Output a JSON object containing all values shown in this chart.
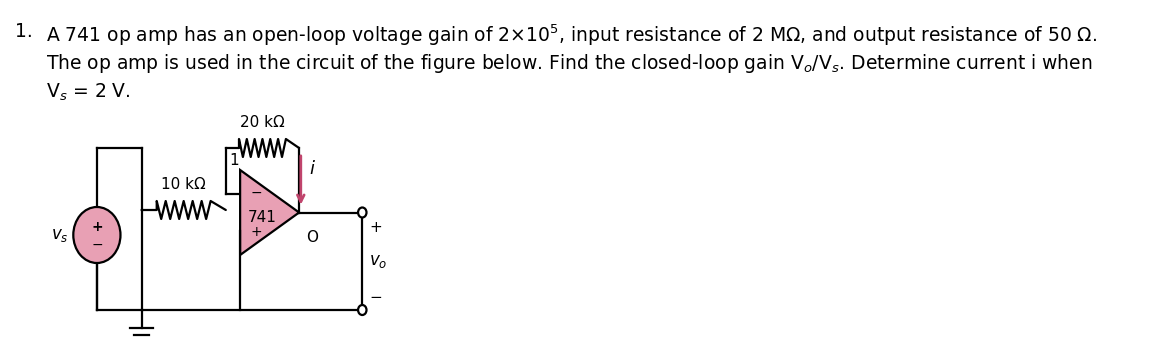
{
  "bg_color": "#ffffff",
  "text_color": "#000000",
  "circuit_color": "#000000",
  "arrow_color": "#c0446c",
  "opamp_fill": "#e8a0b4",
  "source_fill": "#e8a0b4",
  "resistor_20k_label": "20 kΩ",
  "resistor_10k_label": "10 kΩ",
  "opamp_label": "741",
  "node1_label": "1",
  "current_label": "i",
  "output_label": "O",
  "vo_label": "v_o",
  "vs_label": "v_s",
  "plus_src": "+",
  "minus_src": "−",
  "plus_out": "+",
  "minus_out": "−",
  "opamp_minus": "−",
  "opamp_plus": "+",
  "line1": "A 741 op amp has an open-loop voltage gain of 2×10",
  "line1_sup": "5",
  "line1b": ", input resistance of 2 MΩ, and output resistance of 50 Ω.",
  "line2": "The op amp is used in the circuit of the figure below. Find the closed-loop gain V",
  "line2_sub_o": "o",
  "line2_mid": "/V",
  "line2_sub_s": "s",
  "line2b": ". Determine current i when",
  "line3": "V",
  "line3_sub": "s",
  "line3b": " = 2 V.",
  "number": "1."
}
